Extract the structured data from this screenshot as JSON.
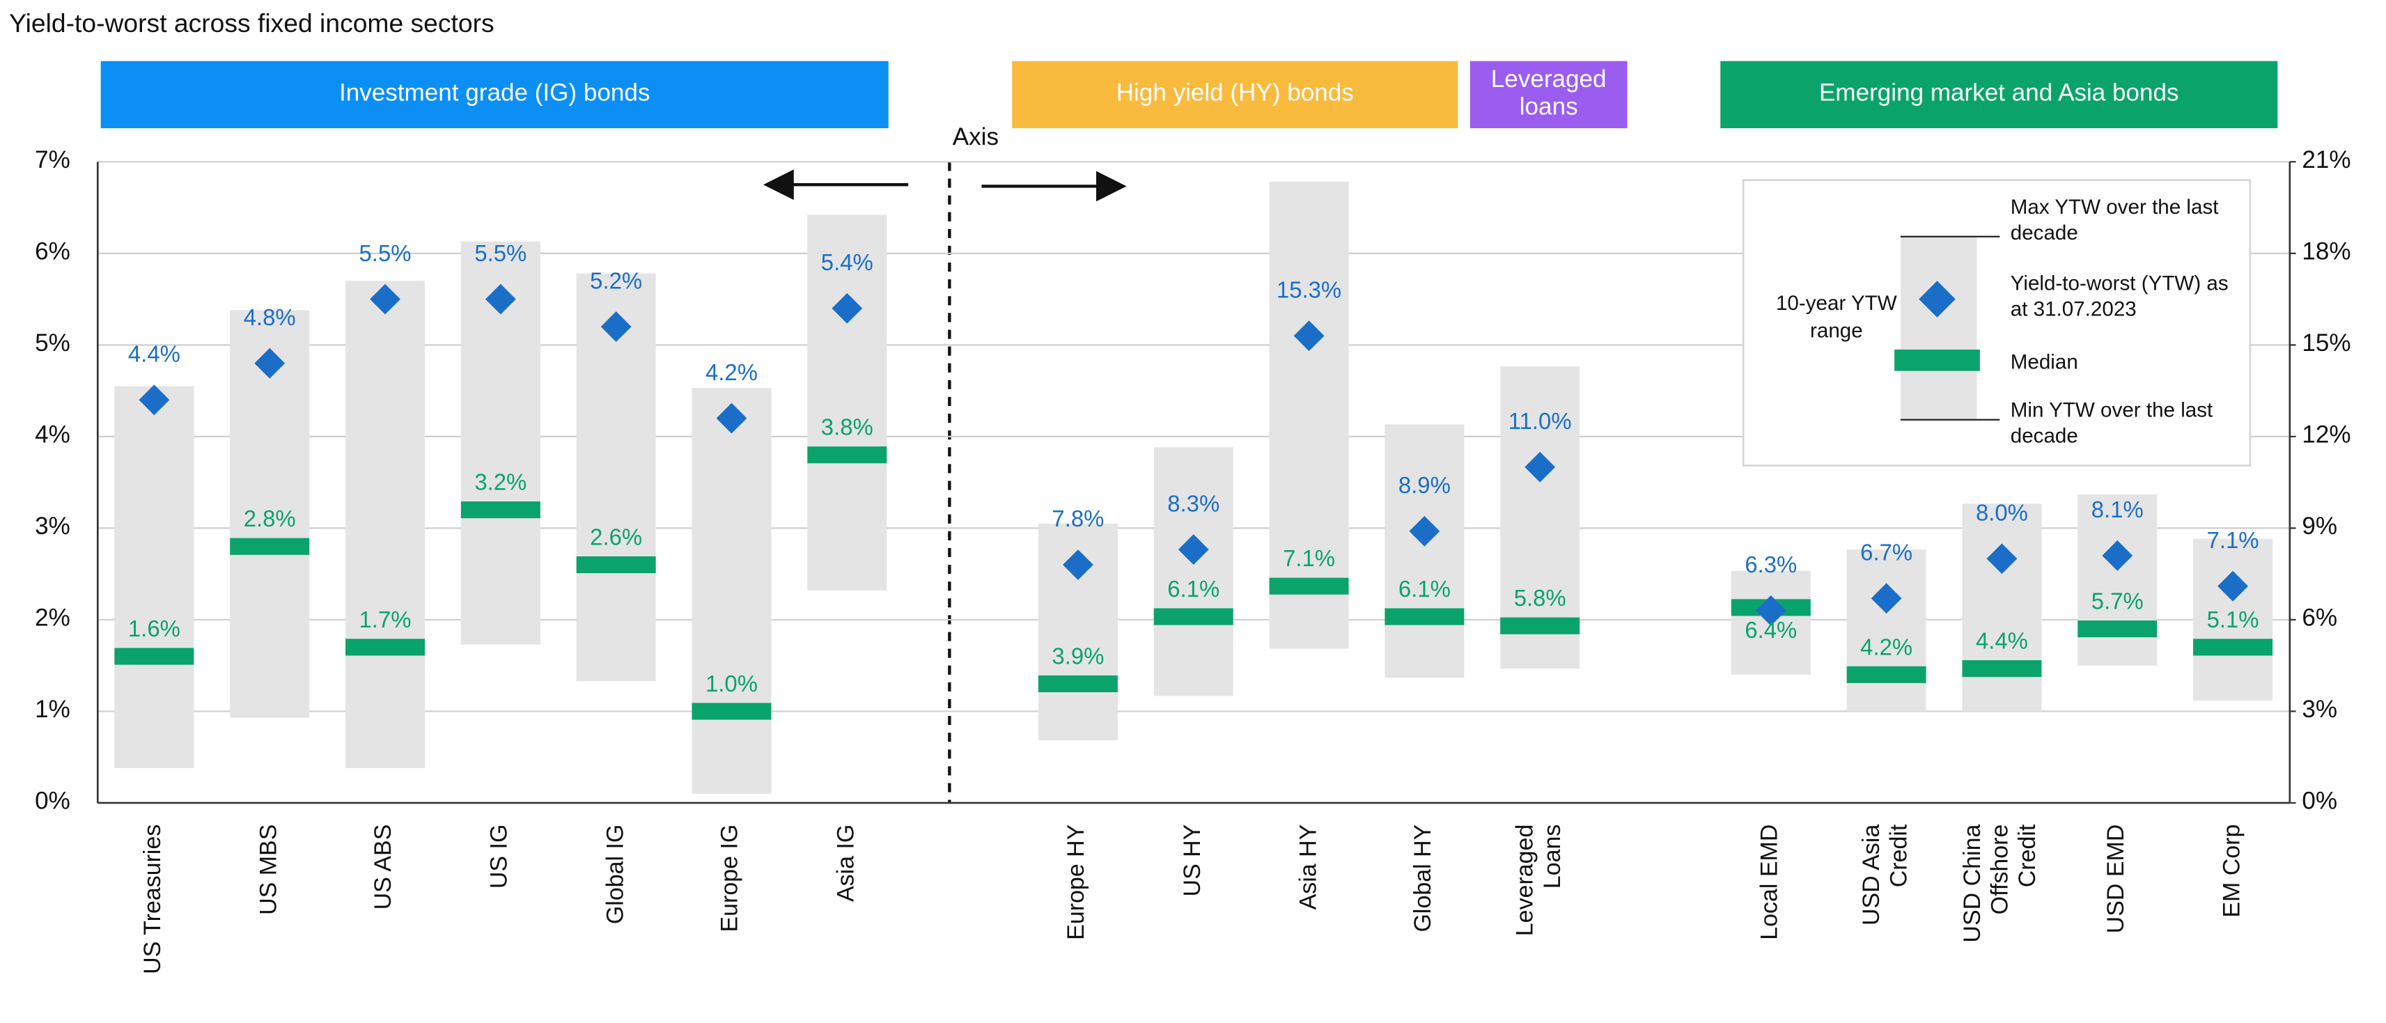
{
  "chart_data": {
    "type": "range",
    "title": "Yield-to-worst across fixed income sectors",
    "axis_note": "Axis",
    "ylim": [
      0,
      7
    ],
    "yticks": [
      {
        "value": 0,
        "label": "0%"
      },
      {
        "value": 1,
        "label": "1%"
      },
      {
        "value": 2,
        "label": "2%"
      },
      {
        "value": 3,
        "label": "3%"
      },
      {
        "value": 4,
        "label": "4%"
      },
      {
        "value": 5,
        "label": "5%"
      },
      {
        "value": 6,
        "label": "6%"
      },
      {
        "value": 7,
        "label": "7%"
      }
    ],
    "y2lim": [
      0,
      21
    ],
    "y2ticks": [
      {
        "value": 0,
        "label": "0%"
      },
      {
        "value": 3,
        "label": "3%"
      },
      {
        "value": 6,
        "label": "6%"
      },
      {
        "value": 9,
        "label": "9%"
      },
      {
        "value": 12,
        "label": "12%"
      },
      {
        "value": 15,
        "label": "15%"
      },
      {
        "value": 18,
        "label": "18%"
      },
      {
        "value": 21,
        "label": "21%"
      }
    ],
    "grid": true,
    "range_color": "#e4e4e5",
    "ytw_color": "#1b6ec8",
    "median_color": "#0aa36b",
    "headers": [
      {
        "text": "Investment grade (IG) bonds",
        "color": "#0b8ff5"
      },
      {
        "text": "High yield (HY) bonds",
        "color": "#f9bb3e"
      },
      {
        "text": "Leveraged loans",
        "color": "#9b5cf0"
      },
      {
        "text": "Emerging market and Asia bonds",
        "color": "#0aa46b"
      }
    ],
    "groups": [
      {
        "axis": "y",
        "categories": [
          "US Treasuries",
          "US MBS",
          "US ABS",
          "US IG",
          "Global IG",
          "Europe IG",
          "Asia IG"
        ],
        "max": [
          4.55,
          5.38,
          5.7,
          6.13,
          5.78,
          4.53,
          6.42
        ],
        "min": [
          0.38,
          0.93,
          0.38,
          1.73,
          1.33,
          0.1,
          2.32
        ],
        "values": [
          4.4,
          4.8,
          5.5,
          5.5,
          5.2,
          4.2,
          5.4
        ],
        "value_labels": [
          "4.4%",
          "4.8%",
          "5.5%",
          "5.5%",
          "5.2%",
          "4.2%",
          "5.4%"
        ],
        "median": [
          1.6,
          2.8,
          1.7,
          3.2,
          2.6,
          1.0,
          3.8
        ],
        "median_labels": [
          "1.6%",
          "2.8%",
          "1.7%",
          "3.2%",
          "2.6%",
          "1.0%",
          "3.8%"
        ]
      },
      {
        "axis": "y2",
        "categories": [
          "Europe HY",
          "US HY",
          "Asia HY",
          "Global HY",
          "Leveraged Loans"
        ],
        "max": [
          9.15,
          11.65,
          20.35,
          12.4,
          14.3
        ],
        "min": [
          2.05,
          3.5,
          5.05,
          4.1,
          4.4
        ],
        "values": [
          7.8,
          8.3,
          15.3,
          8.9,
          11.0
        ],
        "value_labels": [
          "7.8%",
          "8.3%",
          "15.3%",
          "8.9%",
          "11.0%"
        ],
        "median": [
          3.9,
          6.1,
          7.1,
          6.1,
          5.8
        ],
        "median_labels": [
          "3.9%",
          "6.1%",
          "7.1%",
          "6.1%",
          "5.8%"
        ]
      },
      {
        "axis": "y2",
        "categories": [
          "Local EMD",
          "USD Asia Credit",
          "USD China Offshore Credit",
          "USD EMD",
          "EM Corp"
        ],
        "max": [
          7.6,
          8.3,
          9.8,
          10.1,
          8.65
        ],
        "min": [
          4.2,
          3.0,
          3.0,
          4.5,
          3.35
        ],
        "values": [
          6.3,
          6.7,
          8.0,
          8.1,
          7.1
        ],
        "value_labels": [
          "6.3%",
          "6.7%",
          "8.0%",
          "8.1%",
          "7.1%"
        ],
        "median": [
          6.4,
          4.2,
          4.4,
          5.7,
          5.1
        ],
        "median_labels": [
          "6.4%",
          "4.2%",
          "4.4%",
          "5.7%",
          "5.1%"
        ]
      }
    ],
    "legend": {
      "title": "10-year YTW range",
      "max": "Max YTW over the last decade",
      "ytw": "Yield-to-worst (YTW) as at 31.07.2023",
      "median": "Median",
      "min": "Min YTW over the last decade"
    }
  }
}
